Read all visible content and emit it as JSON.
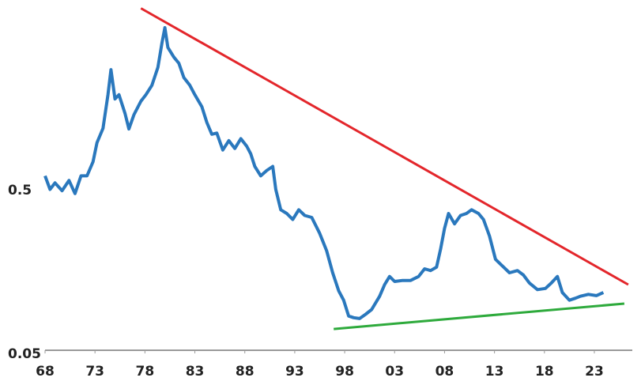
{
  "chart_data": {
    "type": "line",
    "yscale": "log",
    "xlim": [
      1968,
      2026.8
    ],
    "ylim": [
      0.05,
      7
    ],
    "yticks": [
      0.05,
      0.5
    ],
    "xticks": [
      {
        "value": 1968,
        "label": "68"
      },
      {
        "value": 1973,
        "label": "73"
      },
      {
        "value": 1978,
        "label": "78"
      },
      {
        "value": 1983,
        "label": "83"
      },
      {
        "value": 1988,
        "label": "88"
      },
      {
        "value": 1993,
        "label": "93"
      },
      {
        "value": 1998,
        "label": "98"
      },
      {
        "value": 2003,
        "label": "03"
      },
      {
        "value": 2008,
        "label": "08"
      },
      {
        "value": 2013,
        "label": "13"
      },
      {
        "value": 2018,
        "label": "18"
      },
      {
        "value": 2023,
        "label": "23"
      }
    ],
    "series": [
      {
        "color": "#2a78bd",
        "x": [
          1968.0,
          1968.5,
          1969.0,
          1969.7,
          1970.4,
          1971.0,
          1971.6,
          1972.2,
          1972.8,
          1973.2,
          1973.8,
          1974.3,
          1974.6,
          1975.0,
          1975.4,
          1976.0,
          1976.4,
          1976.9,
          1977.6,
          1978.1,
          1978.7,
          1979.3,
          1979.7,
          1980.0,
          1980.3,
          1980.9,
          1981.4,
          1981.9,
          1982.5,
          1983.0,
          1983.7,
          1984.2,
          1984.7,
          1985.2,
          1985.8,
          1986.4,
          1987.0,
          1987.6,
          1988.2,
          1988.6,
          1989.0,
          1989.6,
          1990.2,
          1990.8,
          1991.1,
          1991.6,
          1992.2,
          1992.8,
          1993.4,
          1994.0,
          1994.7,
          1995.5,
          1996.2,
          1996.8,
          1997.4,
          1997.9,
          1998.4,
          1998.9,
          1999.5,
          2000.1,
          2000.7,
          2001.5,
          2002.0,
          2002.5,
          2003.0,
          2003.8,
          2004.6,
          2005.4,
          2006.0,
          2006.6,
          2007.2,
          2007.6,
          2008.0,
          2008.4,
          2009.0,
          2009.6,
          2010.2,
          2010.7,
          2011.4,
          2011.9,
          2012.5,
          2013.1,
          2013.7,
          2014.5,
          2015.3,
          2015.9,
          2016.5,
          2017.3,
          2018.1,
          2018.7,
          2019.3,
          2019.8,
          2020.5,
          2021.1,
          2021.6,
          2022.4,
          2023.2,
          2023.9
        ],
        "values": [
          0.62,
          0.51,
          0.56,
          0.5,
          0.58,
          0.48,
          0.62,
          0.62,
          0.76,
          1.0,
          1.23,
          2.0,
          2.87,
          1.88,
          2.0,
          1.53,
          1.22,
          1.5,
          1.82,
          2.0,
          2.29,
          2.97,
          4.19,
          5.26,
          3.95,
          3.44,
          3.15,
          2.56,
          2.29,
          2.0,
          1.68,
          1.34,
          1.13,
          1.15,
          0.9,
          1.03,
          0.92,
          1.06,
          0.95,
          0.85,
          0.71,
          0.62,
          0.67,
          0.71,
          0.51,
          0.38,
          0.36,
          0.33,
          0.38,
          0.35,
          0.34,
          0.27,
          0.21,
          0.153,
          0.118,
          0.103,
          0.082,
          0.08,
          0.079,
          0.084,
          0.09,
          0.109,
          0.129,
          0.145,
          0.135,
          0.137,
          0.137,
          0.145,
          0.162,
          0.158,
          0.166,
          0.215,
          0.29,
          0.36,
          0.31,
          0.35,
          0.36,
          0.38,
          0.36,
          0.33,
          0.26,
          0.186,
          0.171,
          0.153,
          0.158,
          0.148,
          0.132,
          0.12,
          0.122,
          0.132,
          0.145,
          0.115,
          0.103,
          0.106,
          0.109,
          0.112,
          0.11,
          0.115
        ]
      }
    ],
    "trendlines": [
      {
        "color": "#e3262b",
        "x": [
          1977.6,
          2026.4
        ],
        "values": [
          6.96,
          0.129
        ]
      },
      {
        "color": "#2eaa3c",
        "x": [
          1996.9,
          2026.0
        ],
        "values": [
          0.068,
          0.098
        ]
      }
    ]
  }
}
